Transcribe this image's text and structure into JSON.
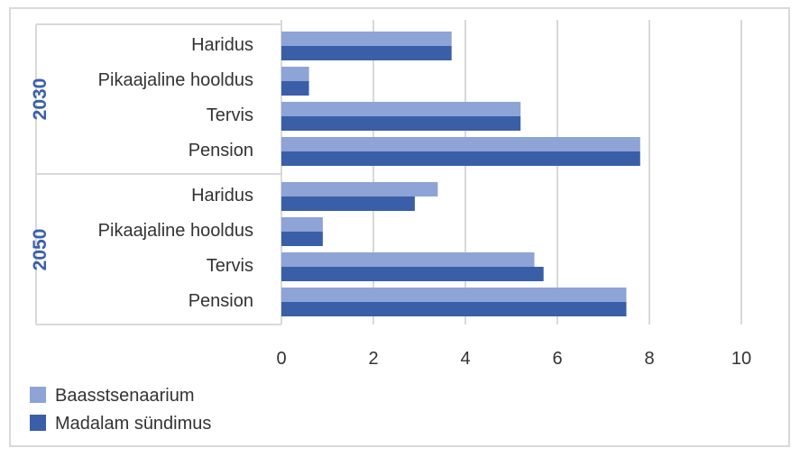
{
  "chart_data": {
    "type": "bar",
    "orientation": "horizontal",
    "groups": [
      {
        "label": "2030",
        "categories": [
          "Haridus",
          "Pikaajaline hooldus",
          "Tervis",
          "Pension"
        ],
        "series": [
          {
            "name": "Baasstsenaarium",
            "values": [
              3.7,
              0.6,
              5.2,
              7.8
            ]
          },
          {
            "name": "Madalam sündimus",
            "values": [
              3.7,
              0.6,
              5.2,
              7.8
            ]
          }
        ]
      },
      {
        "label": "2050",
        "categories": [
          "Haridus",
          "Pikaajaline hooldus",
          "Tervis",
          "Pension"
        ],
        "series": [
          {
            "name": "Baasstsenaarium",
            "values": [
              3.4,
              0.9,
              5.5,
              7.5
            ]
          },
          {
            "name": "Madalam sündimus",
            "values": [
              2.9,
              0.9,
              5.7,
              7.5
            ]
          }
        ]
      }
    ],
    "xlim": [
      0,
      10
    ],
    "xticks": [
      "0",
      "2",
      "4",
      "6",
      "8",
      "10"
    ],
    "grid": true,
    "legend_position": "bottom-left",
    "legend": [
      {
        "name": "Baasstsenaarium",
        "color": "#8ea3d6"
      },
      {
        "name": "Madalam sündimus",
        "color": "#3a5fa8"
      }
    ],
    "title": "",
    "xlabel": "",
    "ylabel": ""
  }
}
